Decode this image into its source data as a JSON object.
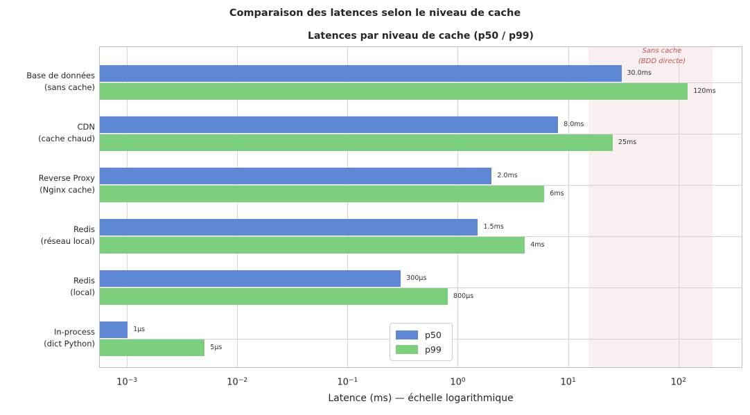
{
  "chart_data": {
    "type": "bar",
    "orientation": "horizontal",
    "suptitle": "Comparaison des latences selon le niveau de cache",
    "title": "Latences par niveau de cache (p50 / p99)",
    "xlabel": "Latence (ms) — échelle logarithmique",
    "xscale": "log",
    "xlim": [
      0.00056,
      380
    ],
    "grid": true,
    "categories": [
      {
        "line1": "Base de données",
        "line2": "(sans cache)"
      },
      {
        "line1": "CDN",
        "line2": "(cache chaud)"
      },
      {
        "line1": "Reverse Proxy",
        "line2": "(Nginx cache)"
      },
      {
        "line1": "Redis",
        "line2": "(réseau local)"
      },
      {
        "line1": "Redis",
        "line2": "(local)"
      },
      {
        "line1": "In-process",
        "line2": "(dict Python)"
      }
    ],
    "series": [
      {
        "name": "p50",
        "color": "#5e87d5",
        "values": [
          30,
          8,
          2,
          1.5,
          0.3,
          0.001
        ],
        "labels": [
          "30.0ms",
          "8.0ms",
          "2.0ms",
          "1.5ms",
          "300µs",
          "1µs"
        ]
      },
      {
        "name": "p99",
        "color": "#7ccf7c",
        "values": [
          120,
          25,
          6,
          4,
          0.8,
          0.005
        ],
        "labels": [
          "120ms",
          "25ms",
          "6ms",
          "4ms",
          "800µs",
          "5µs"
        ]
      }
    ],
    "xticks": [
      {
        "value": 0.001,
        "exp": "−3"
      },
      {
        "value": 0.01,
        "exp": "−2"
      },
      {
        "value": 0.1,
        "exp": "−1"
      },
      {
        "value": 1,
        "exp": "0"
      },
      {
        "value": 10,
        "exp": "1"
      },
      {
        "value": 100,
        "exp": "2"
      }
    ],
    "span": {
      "from": 15,
      "to": 200,
      "color": "#f9eef0"
    },
    "annotation": {
      "line1": "Sans cache",
      "line2": "(BDD directe)",
      "color": "#c75055"
    },
    "legend": {
      "position": "lower-center",
      "entries": [
        "p50",
        "p99"
      ]
    }
  }
}
